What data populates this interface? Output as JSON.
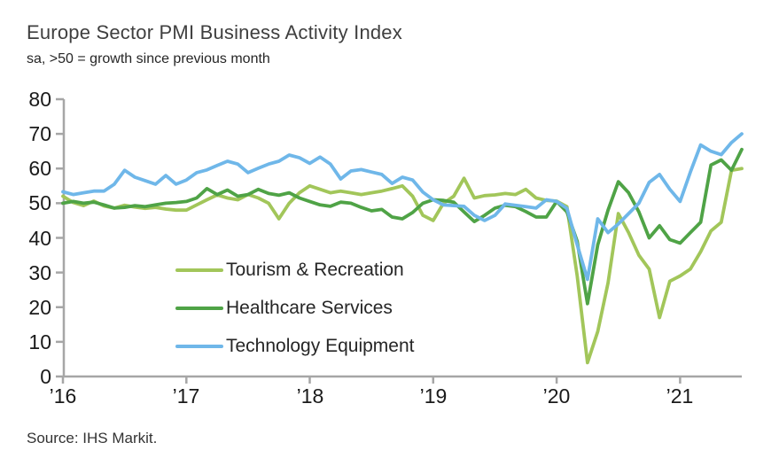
{
  "source": "Source: IHS Markit.",
  "colors": {
    "axis": "#a6a6a6",
    "title_text": "#3f3f3f",
    "label_text": "#1a1a1a"
  },
  "chart_data": {
    "type": "line",
    "title": "Europe Sector PMI Business Activity Index",
    "subtitle": "sa, >50 = growth since previous month",
    "x_unit": "monthly",
    "x_start": "2016-01",
    "x_end": "2021-07",
    "x_tick_labels": [
      "’16",
      "’17",
      "’18",
      "’19",
      "’20",
      "’21"
    ],
    "ylim": [
      0,
      80
    ],
    "y_ticks": [
      0,
      10,
      20,
      30,
      40,
      50,
      60,
      70,
      80
    ],
    "grid": false,
    "legend_position": "inside-center-left",
    "series": [
      {
        "name": "Tourism & Recreation",
        "color": "#a2c65a",
        "values": [
          52,
          50.2,
          49.3,
          50.6,
          49.2,
          48.6,
          49.4,
          48.9,
          48.5,
          48.8,
          48.3,
          48,
          48,
          49.5,
          51,
          52.4,
          51.5,
          51,
          52.5,
          51.5,
          50,
          45.5,
          50,
          53,
          55,
          54,
          53,
          53.5,
          53,
          52.5,
          53,
          53.5,
          54.2,
          55,
          52,
          46.5,
          45,
          50,
          52,
          57.2,
          51.5,
          52.2,
          52.4,
          52.8,
          52.5,
          54,
          51.5,
          50.8,
          50.6,
          49,
          29,
          4,
          13,
          27,
          47,
          41.5,
          35,
          31,
          17,
          27.5,
          29,
          31,
          36,
          42,
          44.5,
          59.5,
          60
        ]
      },
      {
        "name": "Healthcare Services",
        "color": "#4fa346",
        "values": [
          50,
          50.5,
          50,
          50.3,
          49.5,
          48.6,
          48.8,
          49.3,
          49,
          49.5,
          50,
          50.2,
          50.5,
          51.5,
          54.2,
          52.5,
          53.8,
          52,
          52.5,
          54,
          52.8,
          52.3,
          53,
          51.5,
          50.5,
          49.5,
          49.1,
          50.3,
          50,
          48.8,
          47.8,
          48.2,
          46,
          45.5,
          47.3,
          50,
          51,
          50.8,
          50.3,
          47.5,
          44.7,
          46.5,
          48.6,
          49.4,
          49,
          47.6,
          46,
          46,
          50.5,
          47.5,
          39,
          21,
          38,
          48,
          56.2,
          53,
          47.5,
          40,
          43.5,
          39.5,
          38.5,
          41.5,
          44.5,
          61,
          62.5,
          59.5,
          65.5
        ]
      },
      {
        "name": "Technology Equipment",
        "color": "#6fb7e9",
        "values": [
          53.3,
          52.5,
          53,
          53.5,
          53.5,
          55.5,
          59.5,
          57.5,
          56.5,
          55.5,
          58,
          55.5,
          56.7,
          58.8,
          59.6,
          60.9,
          62.1,
          61.3,
          58.8,
          60.1,
          61.3,
          62.1,
          63.9,
          63.1,
          61.5,
          63.3,
          61.3,
          57,
          59.3,
          59.7,
          59,
          58.3,
          55.7,
          57.5,
          56.7,
          53.2,
          51,
          49.5,
          49.3,
          49.1,
          46.5,
          45,
          46.5,
          49.8,
          49.4,
          49,
          48.6,
          51,
          50.5,
          48.5,
          38,
          28,
          45.5,
          41.5,
          44,
          47,
          50,
          56,
          58.3,
          54,
          50.5,
          59,
          66.8,
          65,
          64,
          67.5,
          70
        ]
      }
    ]
  }
}
